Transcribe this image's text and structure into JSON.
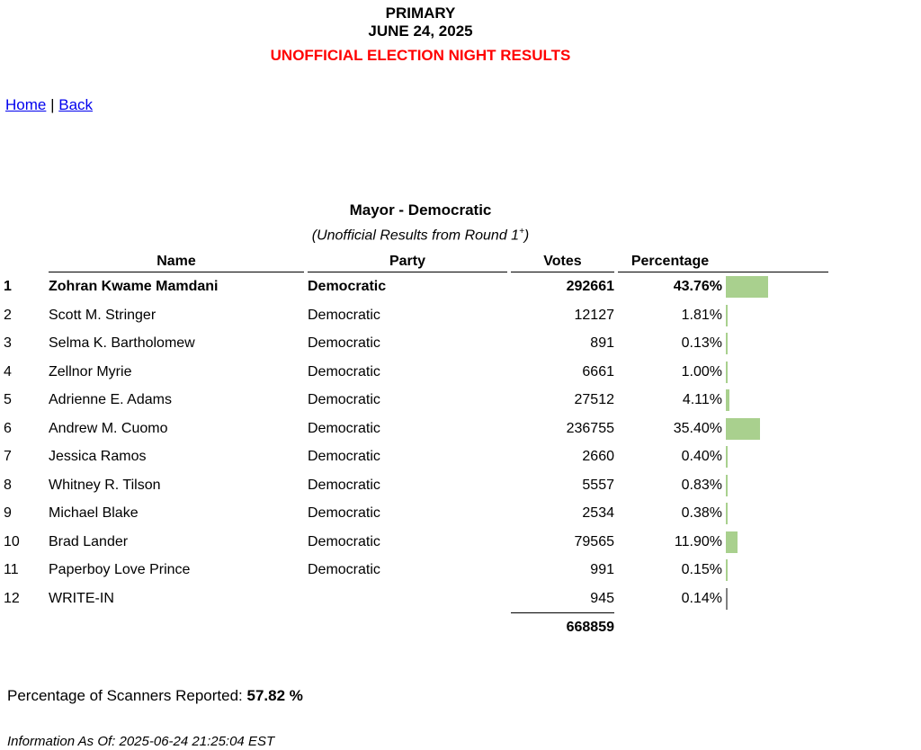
{
  "header": {
    "line1": "PRIMARY",
    "line2": "JUNE 24, 2025",
    "line3": "UNOFFICIAL ELECTION NIGHT RESULTS"
  },
  "nav": {
    "home": "Home",
    "separator": "|",
    "back": "Back"
  },
  "contest": {
    "title": "Mayor - Democratic",
    "subtitle_prefix": "(Unofficial Results from Round 1",
    "subtitle_sup": "+",
    "subtitle_suffix": ")"
  },
  "colors": {
    "alert_red": "#FF0000",
    "link_blue": "#0000EE",
    "bar_green": "#A9D08E",
    "bar_gray": "#808080"
  },
  "table": {
    "headers": {
      "name": "Name",
      "party": "Party",
      "votes": "Votes",
      "percentage": "Percentage"
    },
    "rows": [
      {
        "rank": "1",
        "name": "Zohran Kwame Mamdani",
        "party": "Democratic",
        "votes": "292661",
        "percentage": "43.76%",
        "bold": true,
        "bar_color": "#A9D08E"
      },
      {
        "rank": "2",
        "name": "Scott M. Stringer",
        "party": "Democratic",
        "votes": "12127",
        "percentage": "1.81%",
        "bold": false,
        "bar_color": "#A9D08E"
      },
      {
        "rank": "3",
        "name": "Selma K. Bartholomew",
        "party": "Democratic",
        "votes": "891",
        "percentage": "0.13%",
        "bold": false,
        "bar_color": "#A9D08E"
      },
      {
        "rank": "4",
        "name": "Zellnor Myrie",
        "party": "Democratic",
        "votes": "6661",
        "percentage": "1.00%",
        "bold": false,
        "bar_color": "#A9D08E"
      },
      {
        "rank": "5",
        "name": "Adrienne E. Adams",
        "party": "Democratic",
        "votes": "27512",
        "percentage": "4.11%",
        "bold": false,
        "bar_color": "#A9D08E"
      },
      {
        "rank": "6",
        "name": "Andrew M. Cuomo",
        "party": "Democratic",
        "votes": "236755",
        "percentage": "35.40%",
        "bold": false,
        "bar_color": "#A9D08E"
      },
      {
        "rank": "7",
        "name": "Jessica Ramos",
        "party": "Democratic",
        "votes": "2660",
        "percentage": "0.40%",
        "bold": false,
        "bar_color": "#A9D08E"
      },
      {
        "rank": "8",
        "name": "Whitney R. Tilson",
        "party": "Democratic",
        "votes": "5557",
        "percentage": "0.83%",
        "bold": false,
        "bar_color": "#A9D08E"
      },
      {
        "rank": "9",
        "name": "Michael Blake",
        "party": "Democratic",
        "votes": "2534",
        "percentage": "0.38%",
        "bold": false,
        "bar_color": "#A9D08E"
      },
      {
        "rank": "10",
        "name": "Brad Lander",
        "party": "Democratic",
        "votes": "79565",
        "percentage": "11.90%",
        "bold": false,
        "bar_color": "#A9D08E"
      },
      {
        "rank": "11",
        "name": "Paperboy Love Prince",
        "party": "Democratic",
        "votes": "991",
        "percentage": "0.15%",
        "bold": false,
        "bar_color": "#A9D08E"
      },
      {
        "rank": "12",
        "name": "WRITE-IN",
        "party": "",
        "votes": "945",
        "percentage": "0.14%",
        "bold": false,
        "bar_color": "#808080"
      }
    ],
    "total_votes": "668859"
  },
  "footer": {
    "scanners_label": "Percentage of Scanners Reported:",
    "scanners_value": "57.82 %",
    "info_as_of": "Information As Of: 2025-06-24 21:25:04 EST"
  },
  "chart_data": {
    "type": "bar",
    "orientation": "horizontal",
    "title": "Mayor - Democratic (Unofficial Results from Round 1+)",
    "categories": [
      "Zohran Kwame Mamdani",
      "Scott M. Stringer",
      "Selma K. Bartholomew",
      "Zellnor Myrie",
      "Adrienne E. Adams",
      "Andrew M. Cuomo",
      "Jessica Ramos",
      "Whitney R. Tilson",
      "Michael Blake",
      "Brad Lander",
      "Paperboy Love Prince",
      "WRITE-IN"
    ],
    "series": [
      {
        "name": "Votes",
        "values": [
          292661,
          12127,
          891,
          6661,
          27512,
          236755,
          2660,
          5557,
          2534,
          79565,
          991,
          945
        ]
      },
      {
        "name": "Percentage",
        "values": [
          43.76,
          1.81,
          0.13,
          1.0,
          4.11,
          35.4,
          0.4,
          0.83,
          0.38,
          11.9,
          0.15,
          0.14
        ]
      }
    ],
    "total": 668859,
    "xlim": [
      0,
      100
    ],
    "grid": false,
    "legend": false
  }
}
